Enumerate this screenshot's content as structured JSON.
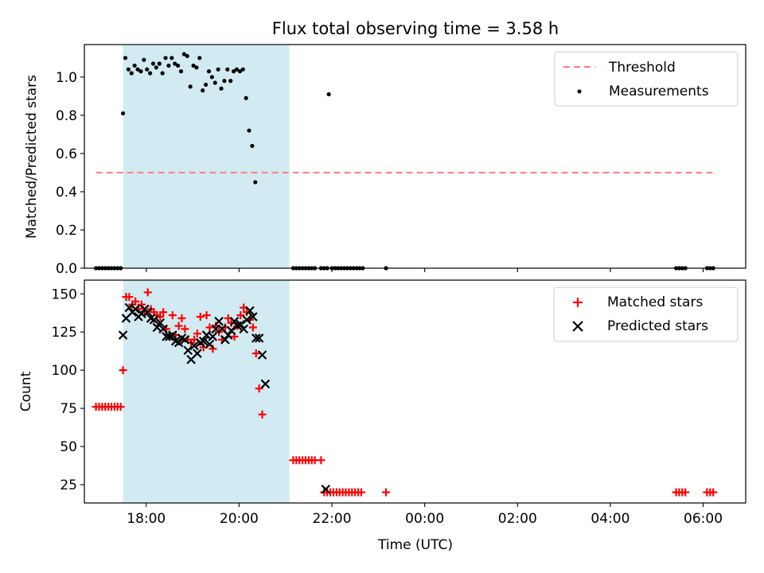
{
  "chart_data": [
    {
      "type": "scatter",
      "title": "Flux total observing time = 3.58 h",
      "ylabel": "Matched/Predicted stars",
      "xlim": [
        "16:40",
        "06:55"
      ],
      "ylim": [
        0,
        1.17
      ],
      "yticks": [
        "0.0",
        "0.2",
        "0.4",
        "0.6",
        "0.8",
        "1.0"
      ],
      "legend": {
        "placement": "top-right",
        "entries": [
          "Threshold",
          "Measurements"
        ]
      },
      "shaded_interval": {
        "start": "17:30",
        "end": "21:05",
        "color": "#add8e6"
      },
      "threshold": {
        "name": "Threshold",
        "value": 0.5,
        "x_start": "16:55",
        "x_end": "06:15",
        "color": "#ff8080",
        "style": "dashed"
      },
      "series": [
        {
          "name": "Measurements",
          "color": "#000000",
          "marker": "dot",
          "points": [
            [
              "16:55",
              0
            ],
            [
              "16:59",
              0
            ],
            [
              "17:03",
              0
            ],
            [
              "17:07",
              0
            ],
            [
              "17:11",
              0
            ],
            [
              "17:15",
              0
            ],
            [
              "17:19",
              0
            ],
            [
              "17:23",
              0
            ],
            [
              "17:27",
              0
            ],
            [
              "17:30",
              0.81
            ],
            [
              "17:33",
              1.1
            ],
            [
              "17:37",
              1.04
            ],
            [
              "17:41",
              1.02
            ],
            [
              "17:45",
              1.06
            ],
            [
              "17:49",
              1.04
            ],
            [
              "17:53",
              1.03
            ],
            [
              "17:57",
              1.09
            ],
            [
              "18:01",
              1.04
            ],
            [
              "18:05",
              1.02
            ],
            [
              "18:09",
              1.07
            ],
            [
              "18:13",
              1.05
            ],
            [
              "18:17",
              1.07
            ],
            [
              "18:21",
              1.02
            ],
            [
              "18:25",
              1.1
            ],
            [
              "18:29",
              1.06
            ],
            [
              "18:33",
              1.1
            ],
            [
              "18:37",
              1.07
            ],
            [
              "18:41",
              1.06
            ],
            [
              "18:45",
              1.03
            ],
            [
              "18:49",
              1.12
            ],
            [
              "18:53",
              1.11
            ],
            [
              "18:57",
              0.95
            ],
            [
              "19:01",
              1.06
            ],
            [
              "19:05",
              1.05
            ],
            [
              "19:09",
              1.1
            ],
            [
              "19:13",
              0.93
            ],
            [
              "19:17",
              0.96
            ],
            [
              "19:21",
              1.03
            ],
            [
              "19:25",
              1.0
            ],
            [
              "19:29",
              0.97
            ],
            [
              "19:33",
              1.04
            ],
            [
              "19:37",
              0.94
            ],
            [
              "19:41",
              0.98
            ],
            [
              "19:45",
              1.04
            ],
            [
              "19:49",
              0.98
            ],
            [
              "19:53",
              1.03
            ],
            [
              "19:57",
              1.04
            ],
            [
              "20:01",
              1.03
            ],
            [
              "20:05",
              1.04
            ],
            [
              "20:09",
              0.89
            ],
            [
              "20:13",
              0.72
            ],
            [
              "20:17",
              0.64
            ],
            [
              "20:21",
              0.45
            ],
            [
              "21:10",
              0
            ],
            [
              "21:14",
              0
            ],
            [
              "21:18",
              0
            ],
            [
              "21:22",
              0
            ],
            [
              "21:26",
              0
            ],
            [
              "21:30",
              0
            ],
            [
              "21:34",
              0
            ],
            [
              "21:38",
              0
            ],
            [
              "21:46",
              0
            ],
            [
              "21:50",
              0
            ],
            [
              "21:54",
              0
            ],
            [
              "21:56",
              0.91
            ],
            [
              "22:00",
              0
            ],
            [
              "22:04",
              0
            ],
            [
              "22:08",
              0
            ],
            [
              "22:12",
              0
            ],
            [
              "22:16",
              0
            ],
            [
              "22:20",
              0
            ],
            [
              "22:24",
              0
            ],
            [
              "22:28",
              0
            ],
            [
              "22:32",
              0
            ],
            [
              "22:36",
              0
            ],
            [
              "22:40",
              0
            ],
            [
              "23:10",
              0
            ],
            [
              "05:25",
              0
            ],
            [
              "05:29",
              0
            ],
            [
              "05:33",
              0
            ],
            [
              "05:37",
              0
            ],
            [
              "06:05",
              0
            ],
            [
              "06:09",
              0
            ],
            [
              "06:13",
              0
            ]
          ]
        }
      ]
    },
    {
      "type": "scatter",
      "xlabel": "Time (UTC)",
      "ylabel": "Count",
      "xlim": [
        "16:40",
        "06:55"
      ],
      "ylim": [
        13,
        159
      ],
      "yticks": [
        "25",
        "50",
        "75",
        "100",
        "125",
        "150"
      ],
      "xticks": [
        "18:00",
        "20:00",
        "22:00",
        "00:00",
        "02:00",
        "04:00",
        "06:00"
      ],
      "legend": {
        "placement": "top-right",
        "entries": [
          "Matched stars",
          "Predicted stars"
        ]
      },
      "shaded_interval": {
        "start": "17:30",
        "end": "21:05",
        "color": "#add8e6"
      },
      "series": [
        {
          "name": "Matched stars",
          "color": "#ff0000",
          "marker": "plus",
          "points": [
            [
              "16:55",
              76
            ],
            [
              "16:59",
              76
            ],
            [
              "17:03",
              76
            ],
            [
              "17:07",
              76
            ],
            [
              "17:11",
              76
            ],
            [
              "17:15",
              76
            ],
            [
              "17:19",
              76
            ],
            [
              "17:23",
              76
            ],
            [
              "17:27",
              76
            ],
            [
              "17:30",
              100
            ],
            [
              "17:34",
              148
            ],
            [
              "17:38",
              148
            ],
            [
              "17:42",
              143
            ],
            [
              "17:46",
              145
            ],
            [
              "17:50",
              140
            ],
            [
              "17:54",
              143
            ],
            [
              "17:58",
              138
            ],
            [
              "18:02",
              151
            ],
            [
              "18:06",
              140
            ],
            [
              "18:10",
              138
            ],
            [
              "18:14",
              136
            ],
            [
              "18:18",
              135
            ],
            [
              "18:22",
              138
            ],
            [
              "18:26",
              127
            ],
            [
              "18:30",
              123
            ],
            [
              "18:34",
              136
            ],
            [
              "18:38",
              123
            ],
            [
              "18:42",
              129
            ],
            [
              "18:46",
              134
            ],
            [
              "18:50",
              127
            ],
            [
              "18:54",
              120
            ],
            [
              "18:58",
              118
            ],
            [
              "19:02",
              120
            ],
            [
              "19:06",
              124
            ],
            [
              "19:10",
              135
            ],
            [
              "19:14",
              115
            ],
            [
              "19:18",
              136
            ],
            [
              "19:22",
              128
            ],
            [
              "19:26",
              114
            ],
            [
              "19:30",
              129
            ],
            [
              "19:34",
              125
            ],
            [
              "19:38",
              120
            ],
            [
              "19:42",
              128
            ],
            [
              "19:46",
              134
            ],
            [
              "19:50",
              131
            ],
            [
              "19:54",
              122
            ],
            [
              "19:58",
              129
            ],
            [
              "20:02",
              136
            ],
            [
              "20:06",
              141
            ],
            [
              "20:10",
              138
            ],
            [
              "20:14",
              133
            ],
            [
              "20:18",
              128
            ],
            [
              "20:22",
              111
            ],
            [
              "20:26",
              88
            ],
            [
              "20:30",
              71
            ],
            [
              "21:10",
              41
            ],
            [
              "21:14",
              41
            ],
            [
              "21:18",
              41
            ],
            [
              "21:22",
              41
            ],
            [
              "21:26",
              41
            ],
            [
              "21:30",
              41
            ],
            [
              "21:34",
              41
            ],
            [
              "21:38",
              41
            ],
            [
              "21:46",
              41
            ],
            [
              "21:50",
              20
            ],
            [
              "21:54",
              20
            ],
            [
              "21:58",
              20
            ],
            [
              "22:02",
              20
            ],
            [
              "22:06",
              20
            ],
            [
              "22:10",
              20
            ],
            [
              "22:14",
              20
            ],
            [
              "22:18",
              20
            ],
            [
              "22:22",
              20
            ],
            [
              "22:26",
              20
            ],
            [
              "22:30",
              20
            ],
            [
              "22:34",
              20
            ],
            [
              "22:38",
              20
            ],
            [
              "23:10",
              20
            ],
            [
              "05:25",
              20
            ],
            [
              "05:29",
              20
            ],
            [
              "05:33",
              20
            ],
            [
              "05:37",
              20
            ],
            [
              "06:05",
              20
            ],
            [
              "06:09",
              20
            ],
            [
              "06:13",
              20
            ]
          ]
        },
        {
          "name": "Predicted stars",
          "color": "#000000",
          "marker": "x",
          "points": [
            [
              "17:30",
              123
            ],
            [
              "17:34",
              134
            ],
            [
              "17:38",
              141
            ],
            [
              "17:42",
              138
            ],
            [
              "17:46",
              140
            ],
            [
              "17:50",
              135
            ],
            [
              "17:54",
              137
            ],
            [
              "17:58",
              140
            ],
            [
              "18:02",
              138
            ],
            [
              "18:06",
              134
            ],
            [
              "18:10",
              133
            ],
            [
              "18:14",
              128
            ],
            [
              "18:18",
              131
            ],
            [
              "18:22",
              127
            ],
            [
              "18:26",
              122
            ],
            [
              "18:30",
              122
            ],
            [
              "18:34",
              123
            ],
            [
              "18:38",
              119
            ],
            [
              "18:42",
              118
            ],
            [
              "18:46",
              121
            ],
            [
              "18:50",
              120
            ],
            [
              "18:54",
              113
            ],
            [
              "18:58",
              107
            ],
            [
              "19:02",
              116
            ],
            [
              "19:06",
              111
            ],
            [
              "19:10",
              118
            ],
            [
              "19:14",
              119
            ],
            [
              "19:18",
              123
            ],
            [
              "19:22",
              117
            ],
            [
              "19:26",
              122
            ],
            [
              "19:30",
              127
            ],
            [
              "19:34",
              132
            ],
            [
              "19:38",
              127
            ],
            [
              "19:42",
              120
            ],
            [
              "19:46",
              123
            ],
            [
              "19:50",
              126
            ],
            [
              "19:54",
              132
            ],
            [
              "19:58",
              129
            ],
            [
              "20:02",
              130
            ],
            [
              "20:06",
              127
            ],
            [
              "20:10",
              133
            ],
            [
              "20:14",
              139
            ],
            [
              "20:18",
              135
            ],
            [
              "20:22",
              121
            ],
            [
              "20:26",
              121
            ],
            [
              "20:30",
              110
            ],
            [
              "20:34",
              91
            ],
            [
              "21:52",
              22
            ]
          ]
        }
      ]
    }
  ]
}
